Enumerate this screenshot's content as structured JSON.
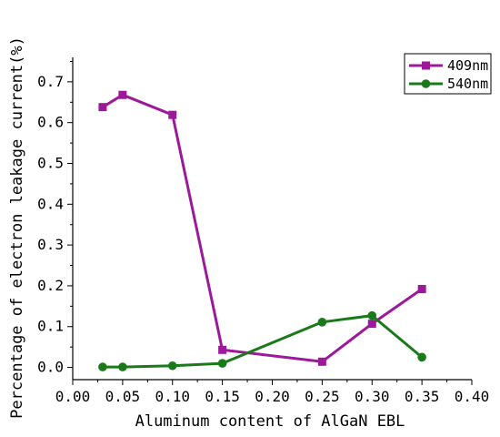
{
  "chart_data": {
    "type": "line",
    "xlabel": "Aluminum content of AlGaN EBL",
    "ylabel": "Percentage of electron leakage current(%)",
    "xlim": [
      0.0,
      0.4
    ],
    "ylim": [
      -0.03,
      0.76
    ],
    "xticks": [
      "0.00",
      "0.05",
      "0.10",
      "0.15",
      "0.20",
      "0.25",
      "0.30",
      "0.35",
      "0.40"
    ],
    "yticks": [
      "0.0",
      "0.1",
      "0.2",
      "0.3",
      "0.4",
      "0.5",
      "0.6",
      "0.7"
    ],
    "grid": false,
    "legend_position": "top-right",
    "series": [
      {
        "name": "409nm",
        "color": "#9c1a9a",
        "marker": "square",
        "x": [
          0.03,
          0.05,
          0.1,
          0.15,
          0.25,
          0.3,
          0.35
        ],
        "y": [
          0.638,
          0.668,
          0.619,
          0.043,
          0.014,
          0.107,
          0.192
        ]
      },
      {
        "name": "540nm",
        "color": "#1a7a1a",
        "marker": "circle",
        "x": [
          0.03,
          0.05,
          0.1,
          0.15,
          0.25,
          0.3,
          0.35
        ],
        "y": [
          0.001,
          0.001,
          0.004,
          0.01,
          0.111,
          0.127,
          0.025
        ]
      }
    ]
  }
}
